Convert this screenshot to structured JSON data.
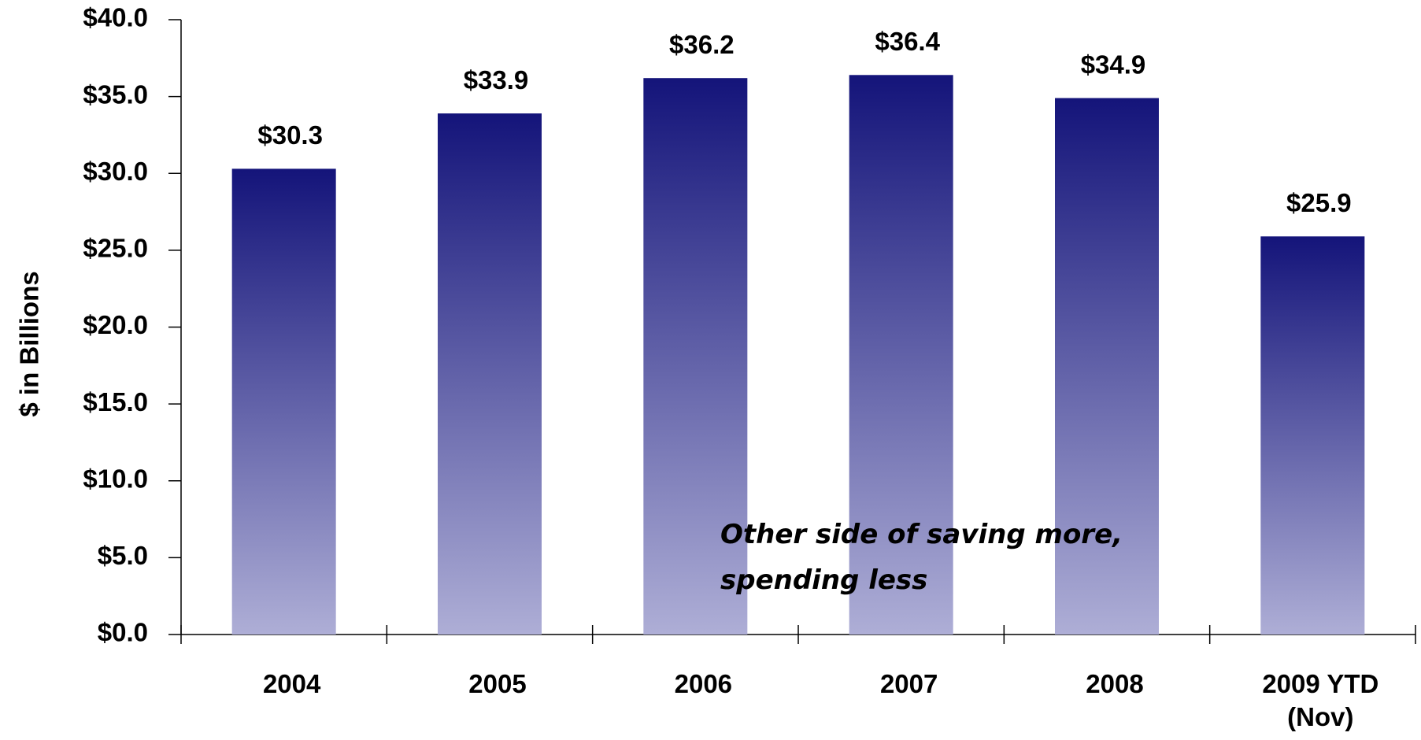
{
  "chart_data": {
    "type": "bar",
    "y_label": "$ in Billions",
    "categories": [
      "2004",
      "2005",
      "2006",
      "2007",
      "2008",
      "2009 YTD (Nov)"
    ],
    "values": [
      30.3,
      33.9,
      36.2,
      36.4,
      34.9,
      25.9
    ],
    "value_labels": [
      "$30.3",
      "$33.9",
      "$36.2",
      "$36.4",
      "$34.9",
      "$25.9"
    ],
    "color": [
      "#14147a",
      "#aeaed6"
    ],
    "ylim": [
      0,
      40
    ],
    "yticks": [
      {
        "value": 0,
        "label": "$0.0"
      },
      {
        "value": 5,
        "label": "$5.0"
      },
      {
        "value": 10,
        "label": "$10.0"
      },
      {
        "value": 15,
        "label": "$15.0"
      },
      {
        "value": 20,
        "label": "$20.0"
      },
      {
        "value": 25,
        "label": "$25.0"
      },
      {
        "value": 30,
        "label": "$30.0"
      },
      {
        "value": 35,
        "label": "$35.0"
      },
      {
        "value": 40,
        "label": "$40.0"
      }
    ],
    "grid": false,
    "annotation": [
      "Other side of saving more,",
      "spending less"
    ]
  }
}
